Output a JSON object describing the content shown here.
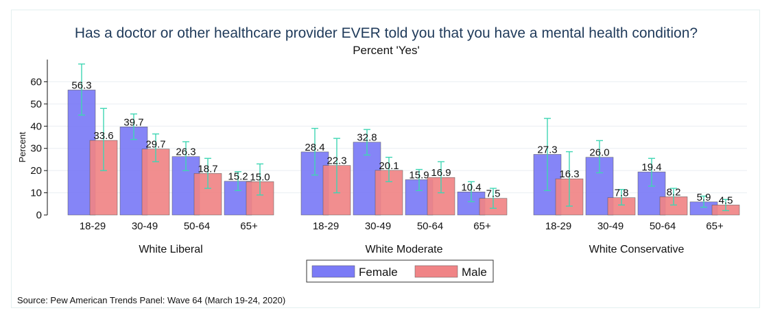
{
  "chart_data": {
    "type": "bar",
    "title": "Has a doctor or other healthcare provider EVER told you that you have a mental health condition?",
    "subtitle": "Percent 'Yes'",
    "ylabel": "Percent",
    "ylim": [
      0,
      70
    ],
    "yticks": [
      0,
      10,
      20,
      30,
      40,
      50,
      60
    ],
    "grid": true,
    "legend_position": "bottom",
    "source": "Source: Pew American Trends Panel: Wave 64 (March 19-24, 2020)",
    "series_colors": [
      "#7b7bf6",
      "#f08486"
    ],
    "errorbar_color": "#3ed6b3",
    "series": [
      {
        "name": "Female"
      },
      {
        "name": "Male"
      }
    ],
    "groups": [
      {
        "name": "White Liberal",
        "categories": [
          "18-29",
          "30-49",
          "50-64",
          "65+"
        ],
        "values": [
          [
            56.3,
            33.6
          ],
          [
            39.7,
            29.7
          ],
          [
            26.3,
            18.7
          ],
          [
            15.2,
            15.0
          ]
        ],
        "ci": [
          [
            [
              45,
              68
            ],
            [
              20,
              48
            ]
          ],
          [
            [
              34,
              45.5
            ],
            [
              24,
              36.5
            ]
          ],
          [
            [
              20,
              33
            ],
            [
              12,
              25.5
            ]
          ],
          [
            [
              11,
              19.5
            ],
            [
              9,
              23
            ]
          ]
        ]
      },
      {
        "name": "White Moderate",
        "categories": [
          "18-29",
          "30-49",
          "50-64",
          "65+"
        ],
        "values": [
          [
            28.4,
            22.3
          ],
          [
            32.8,
            20.1
          ],
          [
            15.9,
            16.9
          ],
          [
            10.4,
            7.5
          ]
        ],
        "ci": [
          [
            [
              18,
              39
            ],
            [
              10,
              34.5
            ]
          ],
          [
            [
              27,
              38.5
            ],
            [
              15,
              26
            ]
          ],
          [
            [
              11,
              20.5
            ],
            [
              10,
              24
            ]
          ],
          [
            [
              6,
              15
            ],
            [
              3,
              12
            ]
          ]
        ]
      },
      {
        "name": "White Conservative",
        "categories": [
          "18-29",
          "30-49",
          "50-64",
          "65+"
        ],
        "values": [
          [
            27.3,
            16.3
          ],
          [
            26.0,
            7.8
          ],
          [
            19.4,
            8.2
          ],
          [
            5.9,
            4.5
          ]
        ],
        "ci": [
          [
            [
              11,
              43.5
            ],
            [
              4,
              28.5
            ]
          ],
          [
            [
              19,
              33.5
            ],
            [
              4.5,
              11.5
            ]
          ],
          [
            [
              13,
              25.5
            ],
            [
              4.5,
              12
            ]
          ],
          [
            [
              3.5,
              8.5
            ],
            [
              2,
              7
            ]
          ]
        ]
      }
    ]
  }
}
